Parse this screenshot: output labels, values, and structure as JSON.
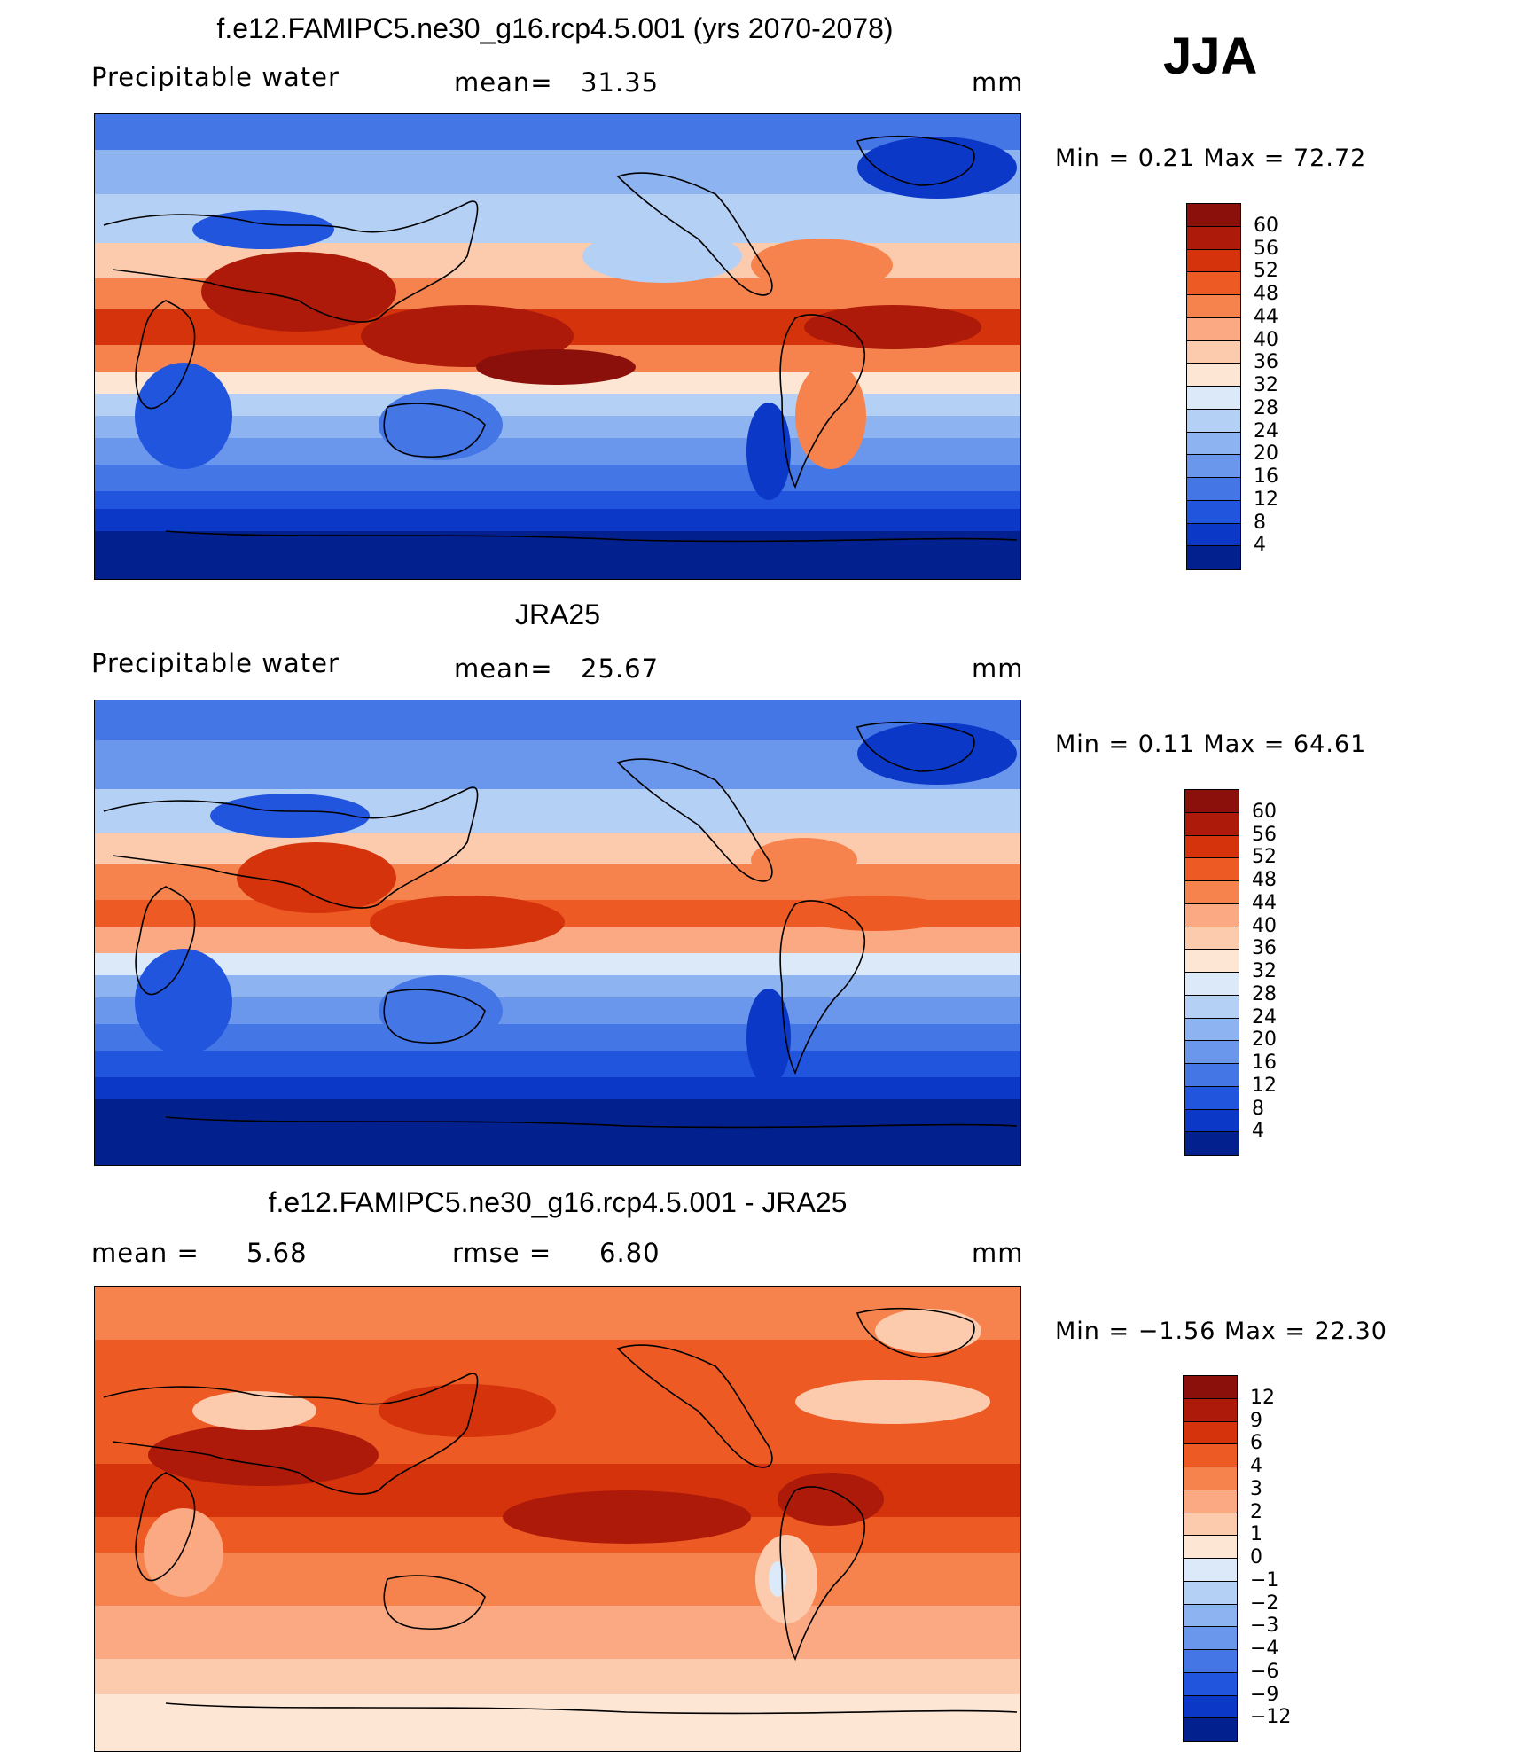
{
  "season": "JJA",
  "panels": [
    {
      "title": "f.e12.FAMIPC5.ne30_g16.rcp4.5.001 (yrs 2070-2078)",
      "left_label": "Precipitable  water",
      "stat_label": "mean=",
      "stat_value": "31.35",
      "units": "mm",
      "min_max": "Min  =     0.21  Max  =    72.72",
      "levels": [
        "60",
        "56",
        "52",
        "48",
        "44",
        "40",
        "36",
        "32",
        "28",
        "24",
        "20",
        "16",
        "12",
        "8",
        "4"
      ],
      "colors": [
        "#8b0f0a",
        "#ad1a0a",
        "#d4330c",
        "#ee5a24",
        "#f6834d",
        "#faa983",
        "#fccbad",
        "#fde6d3",
        "#dbe9f9",
        "#b5d0f5",
        "#8db3f1",
        "#6a97eb",
        "#4476e6",
        "#2155dd",
        "#0c38c8",
        "#03208f"
      ]
    },
    {
      "title": "JRA25",
      "left_label": "Precipitable  water",
      "stat_label": "mean=",
      "stat_value": "25.67",
      "units": "mm",
      "min_max": "Min  =     0.11  Max  =    64.61",
      "levels": [
        "60",
        "56",
        "52",
        "48",
        "44",
        "40",
        "36",
        "32",
        "28",
        "24",
        "20",
        "16",
        "12",
        "8",
        "4"
      ],
      "colors": [
        "#8b0f0a",
        "#ad1a0a",
        "#d4330c",
        "#ee5a24",
        "#f6834d",
        "#faa983",
        "#fccbad",
        "#fde6d3",
        "#dbe9f9",
        "#b5d0f5",
        "#8db3f1",
        "#6a97eb",
        "#4476e6",
        "#2155dd",
        "#0c38c8",
        "#03208f"
      ]
    },
    {
      "title": "f.e12.FAMIPC5.ne30_g16.rcp4.5.001 - JRA25",
      "left_label": "mean  =",
      "left_value": "5.68",
      "stat_label": "rmse  =",
      "stat_value": "6.80",
      "units": "mm",
      "min_max": "Min  =   −1.56  Max  =    22.30",
      "levels": [
        "12",
        "9",
        "6",
        "4",
        "3",
        "2",
        "1",
        "0",
        "−1",
        "−2",
        "−3",
        "−4",
        "−6",
        "−9",
        "−12"
      ],
      "colors": [
        "#8b0f0a",
        "#ad1a0a",
        "#d4330c",
        "#ee5a24",
        "#f6834d",
        "#faa983",
        "#fccbad",
        "#fde6d3",
        "#dbe9f9",
        "#b5d0f5",
        "#8db3f1",
        "#6a97eb",
        "#4476e6",
        "#2155dd",
        "#0c38c8",
        "#03208f"
      ]
    }
  ],
  "chart_data": [
    {
      "type": "heatmap",
      "title": "f.e12.FAMIPC5.ne30_g16.rcp4.5.001 (yrs 2070-2078)",
      "variable": "Precipitable water",
      "units": "mm",
      "mean": 31.35,
      "min": 0.21,
      "max": 72.72,
      "contour_levels": [
        4,
        8,
        12,
        16,
        20,
        24,
        28,
        32,
        36,
        40,
        44,
        48,
        52,
        56,
        60
      ]
    },
    {
      "type": "heatmap",
      "title": "JRA25",
      "variable": "Precipitable water",
      "units": "mm",
      "mean": 25.67,
      "min": 0.11,
      "max": 64.61,
      "contour_levels": [
        4,
        8,
        12,
        16,
        20,
        24,
        28,
        32,
        36,
        40,
        44,
        48,
        52,
        56,
        60
      ]
    },
    {
      "type": "heatmap",
      "title": "f.e12.FAMIPC5.ne30_g16.rcp4.5.001 - JRA25",
      "units": "mm",
      "mean": 5.68,
      "rmse": 6.8,
      "min": -1.56,
      "max": 22.3,
      "contour_levels": [
        -12,
        -9,
        -6,
        -4,
        -3,
        -2,
        -1,
        0,
        1,
        2,
        3,
        4,
        6,
        9,
        12
      ]
    }
  ]
}
